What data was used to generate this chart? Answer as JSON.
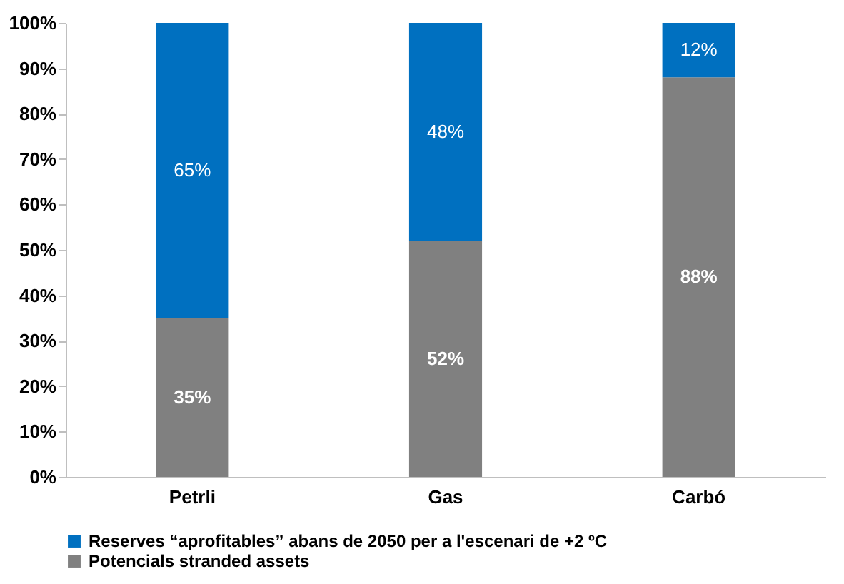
{
  "chart_data": {
    "type": "bar",
    "stacked": true,
    "categories": [
      "Petrli",
      "Gas",
      "Carbó"
    ],
    "series": [
      {
        "name": "Potencials stranded assets",
        "color": "#808080",
        "values": [
          35,
          52,
          88
        ],
        "value_labels": [
          "35%",
          "52%",
          "88%"
        ]
      },
      {
        "name": "Reserves “aprofitables” abans de 2050 per a l'escenari de +2 ºC",
        "color": "#0070c0",
        "values": [
          65,
          48,
          12
        ],
        "value_labels": [
          "65%",
          "48%",
          "12%"
        ]
      }
    ],
    "ylim": [
      0,
      100
    ],
    "yticks": [
      {
        "value": 0,
        "label": "0%"
      },
      {
        "value": 10,
        "label": "10%"
      },
      {
        "value": 20,
        "label": "20%"
      },
      {
        "value": 30,
        "label": "30%"
      },
      {
        "value": 40,
        "label": "40%"
      },
      {
        "value": 50,
        "label": "50%"
      },
      {
        "value": 60,
        "label": "60%"
      },
      {
        "value": 70,
        "label": "70%"
      },
      {
        "value": 80,
        "label": "80%"
      },
      {
        "value": 90,
        "label": "90%"
      },
      {
        "value": 100,
        "label": "100%"
      }
    ],
    "grid": false,
    "legend": "bottom"
  }
}
